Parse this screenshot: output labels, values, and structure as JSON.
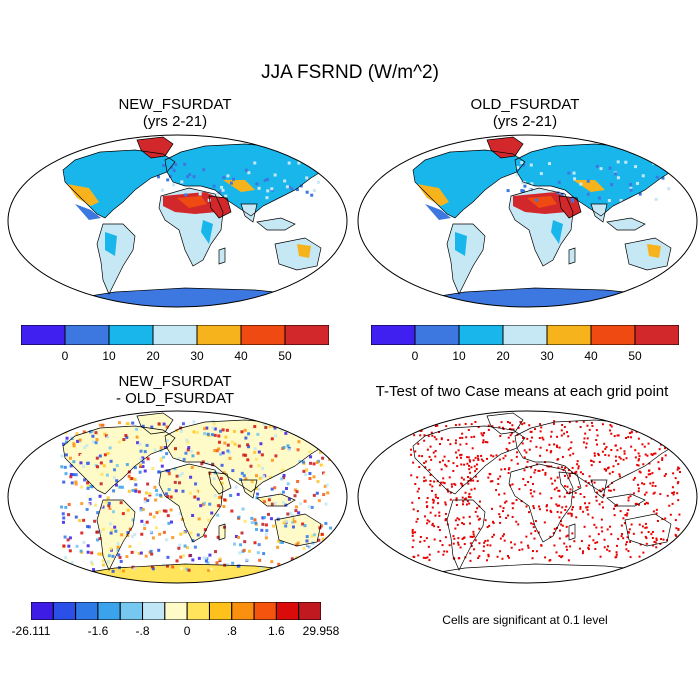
{
  "figure": {
    "title": "JJA FSRND (W/m^2)"
  },
  "panels": {
    "new": {
      "title": "NEW_FSURDAT",
      "subtitle": "(yrs 2-21)"
    },
    "old": {
      "title": "OLD_FSURDAT",
      "subtitle": "(yrs 2-21)"
    },
    "diff": {
      "title": "NEW_FSURDAT",
      "subtitle": "- OLD_FSURDAT"
    },
    "ttest": {
      "title": "T-Test of two Case means at each grid point",
      "note": "Cells are significant at 0.1 level"
    }
  },
  "colorbars": {
    "main": {
      "colors": [
        "#3f20f0",
        "#3c78e0",
        "#19b6ec",
        "#c6e8f5",
        "#f7b31b",
        "#f04a13",
        "#d3282b"
      ],
      "labels": [
        "0",
        "10",
        "20",
        "30",
        "40",
        "50"
      ]
    },
    "diff": {
      "colors": [
        "#3e1ce6",
        "#2a50e8",
        "#2e79e8",
        "#3aa3ec",
        "#76c8f0",
        "#c1e6f5",
        "#fffbc8",
        "#ffe45c",
        "#ffc21d",
        "#fb8f10",
        "#f5540e",
        "#dc0b0b",
        "#c0191f"
      ],
      "labels": [
        "-26.111",
        "-1.6",
        "-.8",
        "0",
        ".8",
        "1.6",
        "29.958"
      ]
    }
  },
  "chart_data": {
    "type": "heatmap",
    "title": "JJA FSRND (W/m^2)",
    "variable": "FSRND",
    "season": "JJA",
    "units": "W/m^2",
    "projection": "Robinson",
    "panels": [
      {
        "name": "NEW_FSURDAT",
        "period": "(yrs 2-21)",
        "levels": [
          0,
          10,
          20,
          30,
          40,
          50
        ]
      },
      {
        "name": "OLD_FSURDAT",
        "period": "(yrs 2-21)",
        "levels": [
          0,
          10,
          20,
          30,
          40,
          50
        ]
      },
      {
        "name": "NEW_FSURDAT - OLD_FSURDAT",
        "range": [
          -26.111,
          29.958
        ],
        "levels": [
          -1.6,
          -0.8,
          0,
          0.8,
          1.6
        ]
      },
      {
        "name": "T-Test of two Case means at each grid point",
        "significance_level": 0.1
      }
    ]
  }
}
